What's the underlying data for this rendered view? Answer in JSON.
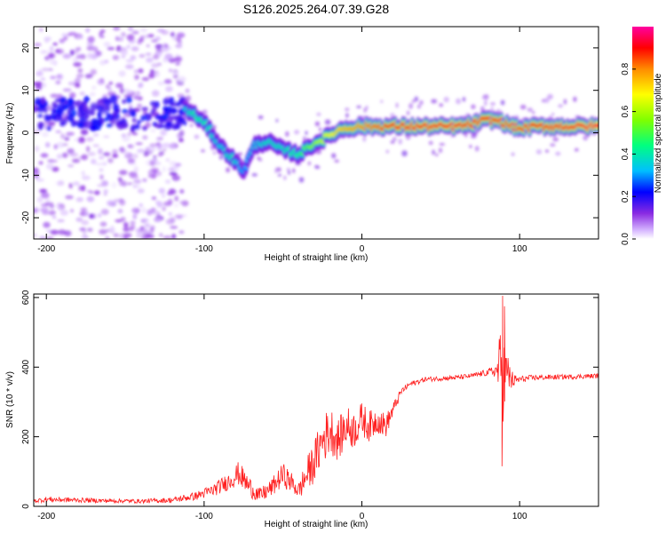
{
  "title": "S126.2025.264.07.39.G28",
  "chart_data": [
    {
      "type": "heatmap",
      "xlabel": "Height of straight line (km)",
      "ylabel": "Frequency (Hz)",
      "xlim": [
        -208,
        150
      ],
      "ylim": [
        -25,
        25
      ],
      "xticks": [
        -200,
        -100,
        0,
        100
      ],
      "xtick_labels": [
        "-200",
        "-100",
        "0",
        "100"
      ],
      "yticks": [
        -20,
        -10,
        0,
        10,
        20
      ],
      "ytick_labels": [
        "-20",
        "-10",
        "0",
        "10",
        "20"
      ],
      "colorbar": {
        "label": "Normalized spectral amplitude",
        "range": [
          0,
          1
        ],
        "ticks": [
          0,
          0.2,
          0.4,
          0.6,
          0.8
        ],
        "tick_labels": [
          "0.0",
          "0.2",
          "0.4",
          "0.6",
          "0.8"
        ]
      },
      "ridge": {
        "x": [
          -112,
          -105,
          -98,
          -90,
          -82,
          -75,
          -68,
          -60,
          -50,
          -40,
          -32,
          -22,
          -12,
          0,
          20,
          40,
          60,
          70,
          78,
          82,
          86,
          92,
          100,
          110,
          130,
          150
        ],
        "y": [
          5.5,
          4,
          1.5,
          -3,
          -6,
          -9,
          -3,
          -2,
          -4,
          -5,
          -3,
          -1,
          1,
          1.5,
          1.5,
          1.5,
          1.5,
          2,
          3,
          3,
          3,
          2,
          1,
          1.5,
          1.5,
          1.5
        ],
        "amplitude": [
          0.35,
          0.45,
          0.4,
          0.35,
          0.4,
          0.3,
          0.35,
          0.4,
          0.4,
          0.45,
          0.55,
          0.65,
          0.75,
          0.8,
          0.9,
          0.92,
          0.92,
          0.9,
          0.9,
          0.88,
          0.9,
          0.85,
          0.85,
          0.9,
          0.92,
          0.95
        ]
      },
      "noise_region": {
        "x": [
          -208,
          -112
        ],
        "y": [
          -25,
          25
        ],
        "amplitude": 0.1
      }
    },
    {
      "type": "line",
      "xlabel": "Height of straight line (km)",
      "ylabel": "SNR (10 * v/v)",
      "xlim": [
        -208,
        150
      ],
      "ylim": [
        0,
        610
      ],
      "xticks": [
        -200,
        -100,
        0,
        100
      ],
      "xtick_labels": [
        "-200",
        "-100",
        "0",
        "100"
      ],
      "yticks": [
        0,
        200,
        400,
        600
      ],
      "ytick_labels": [
        "0",
        "200",
        "400",
        "600"
      ],
      "series": [
        {
          "name": "SNR",
          "color": "#ff2020",
          "x": [
            -208,
            -200,
            -180,
            -160,
            -140,
            -120,
            -105,
            -95,
            -85,
            -78,
            -72,
            -65,
            -58,
            -50,
            -45,
            -40,
            -35,
            -30,
            -25,
            -20,
            -15,
            -10,
            -5,
            0,
            5,
            10,
            15,
            20,
            25,
            30,
            40,
            60,
            70,
            80,
            85,
            88,
            90,
            92,
            96,
            100,
            110,
            130,
            150
          ],
          "y": [
            15,
            20,
            18,
            16,
            15,
            18,
            30,
            45,
            70,
            95,
            60,
            30,
            50,
            90,
            70,
            45,
            90,
            130,
            190,
            220,
            190,
            230,
            220,
            250,
            230,
            250,
            230,
            280,
            330,
            350,
            365,
            370,
            375,
            385,
            390,
            400,
            360,
            380,
            360,
            365,
            370,
            372,
            375
          ],
          "noise": [
            6,
            8,
            7,
            6,
            6,
            8,
            12,
            18,
            25,
            35,
            30,
            22,
            25,
            35,
            30,
            25,
            50,
            60,
            70,
            70,
            60,
            60,
            55,
            50,
            45,
            40,
            35,
            20,
            10,
            8,
            7,
            7,
            7,
            10,
            20,
            120,
            130,
            70,
            20,
            10,
            8,
            7,
            7
          ],
          "spikes": [
            {
              "x": 89.2,
              "y": 605
            },
            {
              "x": 88.8,
              "y": 115
            },
            {
              "x": 90.4,
              "y": 575
            }
          ]
        }
      ]
    }
  ]
}
